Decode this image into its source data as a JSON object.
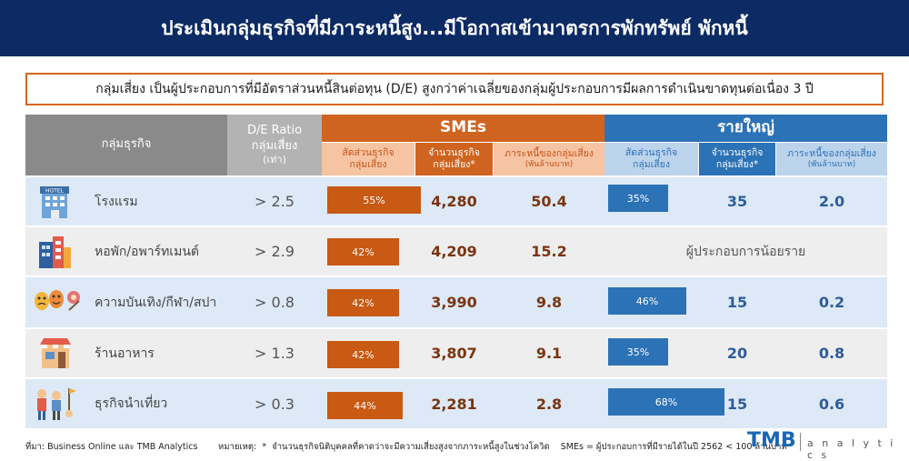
{
  "title": "ประเมินกลุ่มธุรกิจที่มีภาระหนี้สูง...มีโอกาสเข้ามาตรการพักทรัพย์ พักหนี้",
  "subtitle": "กลุ่มเสี่ยง เป็นผู้ประกอบการที่มีอัตราส่วนหนี้สินต่อทุน (D/E) สูงกว่าค่าเฉลี่ยของกลุ่มผู้ประกอบการมีผลการดำเนินขาดทุนต่อเนื่อง 3 ปี",
  "headers": {
    "group": "กลุ่มธุรกิจ",
    "de_line1": "D/E Ratio",
    "de_line2": "กลุ่มเสี่ยง",
    "de_unit": "(เท่า)",
    "sme": "SMEs",
    "large": "รายใหญ่",
    "share_l1": "สัดส่วนธุรกิจ",
    "share_l2": "กลุ่มเสี่ยง",
    "count_l1": "จำนวนธุรกิจ",
    "count_l2": "กลุ่มเสี่ยง*",
    "debt_l1": "ภาระหนี้ของกลุ่มเสี่ยง",
    "debt_unit": "(พันล้านบาท)"
  },
  "few_operators_text": "ผู้ประกอบการน้อยราย",
  "chart_data": {
    "type": "table",
    "columns": [
      "กลุ่มธุรกิจ",
      "D/E Ratio กลุ่มเสี่ยง (เท่า)",
      "SMEs สัดส่วนธุรกิจกลุ่มเสี่ยง",
      "SMEs จำนวนธุรกิจกลุ่มเสี่ยง*",
      "SMEs ภาระหนี้ของกลุ่มเสี่ยง (พันล้านบาท)",
      "รายใหญ่ สัดส่วนธุรกิจกลุ่มเสี่ยง",
      "รายใหญ่ จำนวนธุรกิจกลุ่มเสี่ยง*",
      "รายใหญ่ ภาระหนี้ของกลุ่มเสี่ยง (พันล้านบาท)"
    ],
    "rows": [
      {
        "name": "โรงแรม",
        "de": "> 2.5",
        "sme_share": 55,
        "sme_share_label": "55%",
        "sme_count": "4,280",
        "sme_debt": "50.4",
        "large_share": 35,
        "large_share_label": "35%",
        "large_count": "35",
        "large_debt": "2.0"
      },
      {
        "name": "หอพัก/อพาร์ทเมนต์",
        "de": "> 2.9",
        "sme_share": 42,
        "sme_share_label": "42%",
        "sme_count": "4,209",
        "sme_debt": "15.2",
        "large_share": null,
        "large_share_label": "",
        "large_count": "",
        "large_debt": ""
      },
      {
        "name": "ความบันเทิง/กีฬา/สปา",
        "de": "> 0.8",
        "sme_share": 42,
        "sme_share_label": "42%",
        "sme_count": "3,990",
        "sme_debt": "9.8",
        "large_share": 46,
        "large_share_label": "46%",
        "large_count": "15",
        "large_debt": "0.2"
      },
      {
        "name": "ร้านอาหาร",
        "de": "> 1.3",
        "sme_share": 42,
        "sme_share_label": "42%",
        "sme_count": "3,807",
        "sme_debt": "9.1",
        "large_share": 35,
        "large_share_label": "35%",
        "large_count": "20",
        "large_debt": "0.8"
      },
      {
        "name": "ธุรกิจนำเที่ยว",
        "de": "> 0.3",
        "sme_share": 44,
        "sme_share_label": "44%",
        "sme_count": "2,281",
        "sme_debt": "2.8",
        "large_share": 68,
        "large_share_label": "68%",
        "large_count": "15",
        "large_debt": "0.6"
      }
    ]
  },
  "icons": [
    "hotel-icon",
    "apartment-icon",
    "entertainment-masks-icon",
    "restaurant-icon",
    "tourism-people-icon"
  ],
  "colors": {
    "title_bg": "#0c2a63",
    "sme": "#cf6420",
    "large": "#2c72b6"
  },
  "footer": {
    "source": "ที่มา: Business Online และ TMB Analytics",
    "note": "หมายเหตุ:  *  จำนวนธุรกิจนิติบุคคลที่คาดว่าจะมีความเสี่ยงสูงจากภาระหนี้สูงในช่วงโควิด    SMEs = ผู้ประกอบการที่มีรายได้ในปี 2562 < 100 ล้านบาท",
    "brand": "TMB",
    "brand_sub": "a n a l y t i c s"
  }
}
